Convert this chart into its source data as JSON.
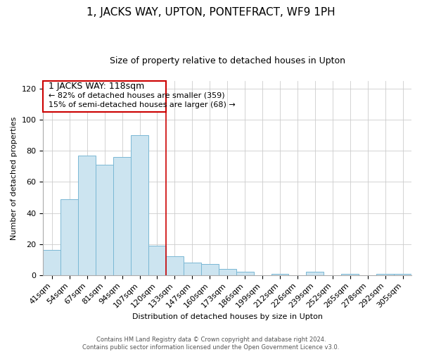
{
  "title": "1, JACKS WAY, UPTON, PONTEFRACT, WF9 1PH",
  "subtitle": "Size of property relative to detached houses in Upton",
  "xlabel": "Distribution of detached houses by size in Upton",
  "ylabel": "Number of detached properties",
  "bar_labels": [
    "41sqm",
    "54sqm",
    "67sqm",
    "81sqm",
    "94sqm",
    "107sqm",
    "120sqm",
    "133sqm",
    "147sqm",
    "160sqm",
    "173sqm",
    "186sqm",
    "199sqm",
    "212sqm",
    "226sqm",
    "239sqm",
    "252sqm",
    "265sqm",
    "278sqm",
    "292sqm",
    "305sqm"
  ],
  "bar_values": [
    16,
    49,
    77,
    71,
    76,
    90,
    19,
    12,
    8,
    7,
    4,
    2,
    0,
    1,
    0,
    2,
    0,
    1,
    0,
    1,
    1
  ],
  "bar_color": "#cce4f0",
  "bar_edge_color": "#7ab8d4",
  "highlight_index": 6,
  "highlight_line_color": "#cc0000",
  "highlight_box_color": "#ffffff",
  "highlight_box_edge_color": "#cc0000",
  "annotation_title": "1 JACKS WAY: 118sqm",
  "annotation_line1": "← 82% of detached houses are smaller (359)",
  "annotation_line2": "15% of semi-detached houses are larger (68) →",
  "ylim": [
    0,
    125
  ],
  "yticks": [
    0,
    20,
    40,
    60,
    80,
    100,
    120
  ],
  "footer_line1": "Contains HM Land Registry data © Crown copyright and database right 2024.",
  "footer_line2": "Contains public sector information licensed under the Open Government Licence v3.0.",
  "background_color": "#ffffff",
  "title_fontsize": 11,
  "subtitle_fontsize": 9,
  "annotation_title_fontsize": 9,
  "annotation_fontsize": 8,
  "axis_label_fontsize": 8,
  "tick_fontsize": 8
}
